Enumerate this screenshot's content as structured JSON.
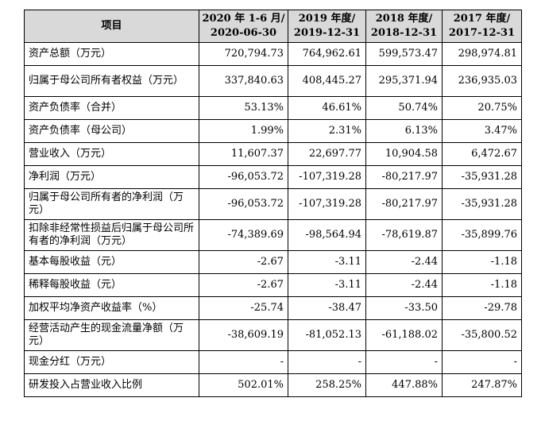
{
  "table": {
    "headers": [
      {
        "line1": "项目",
        "line2": ""
      },
      {
        "line1": "2020 年 1-6 月/",
        "line2": "2020-06-30"
      },
      {
        "line1": "2019 年度/",
        "line2": "2019-12-31"
      },
      {
        "line1": "2018 年度/",
        "line2": "2018-12-31"
      },
      {
        "line1": "2017 年度/",
        "line2": "2017-12-31"
      }
    ],
    "rows": [
      {
        "label": "资产总额（万元）",
        "values": [
          "720,794.73",
          "764,962.61",
          "599,573.47",
          "298,974.81"
        ]
      },
      {
        "label": "归属于母公司所有者权益（万元）",
        "values": [
          "337,840.63",
          "408,445.27",
          "295,371.94",
          "236,935.03"
        ]
      },
      {
        "label": "资产负债率（合并）",
        "values": [
          "53.13%",
          "46.61%",
          "50.74%",
          "20.75%"
        ]
      },
      {
        "label": "资产负债率（母公司）",
        "values": [
          "1.99%",
          "2.31%",
          "6.13%",
          "3.47%"
        ]
      },
      {
        "label": "营业收入（万元）",
        "values": [
          "11,607.37",
          "22,697.77",
          "10,904.58",
          "6,472.67"
        ]
      },
      {
        "label": "净利润（万元）",
        "values": [
          "-96,053.72",
          "-107,319.28",
          "-80,217.97",
          "-35,931.28"
        ]
      },
      {
        "label": "归属于母公司所有者的净利润（万元）",
        "values": [
          "-96,053.72",
          "-107,319.28",
          "-80,217.97",
          "-35,931.28"
        ]
      },
      {
        "label": "扣除非经常性损益后归属于母公司所有者的净利润（万元）",
        "values": [
          "-74,389.69",
          "-98,564.94",
          "-78,619.87",
          "-35,899.76"
        ]
      },
      {
        "label": "基本每股收益（元）",
        "values": [
          "-2.67",
          "-3.11",
          "-2.44",
          "-1.18"
        ]
      },
      {
        "label": "稀释每股收益（元）",
        "values": [
          "-2.67",
          "-3.11",
          "-2.44",
          "-1.18"
        ]
      },
      {
        "label": "加权平均净资产收益率（%）",
        "values": [
          "-25.74",
          "-38.47",
          "-33.50",
          "-29.78"
        ]
      },
      {
        "label": "经营活动产生的现金流量净额（万元）",
        "values": [
          "-38,609.19",
          "-81,052.13",
          "-61,188.02",
          "-35,800.52"
        ]
      },
      {
        "label": "现金分红（万元）",
        "values": [
          "-",
          "-",
          "-",
          "-"
        ]
      },
      {
        "label": "研发投入占营业收入比例",
        "values": [
          "502.01%",
          "258.25%",
          "447.88%",
          "247.87%"
        ]
      }
    ]
  }
}
